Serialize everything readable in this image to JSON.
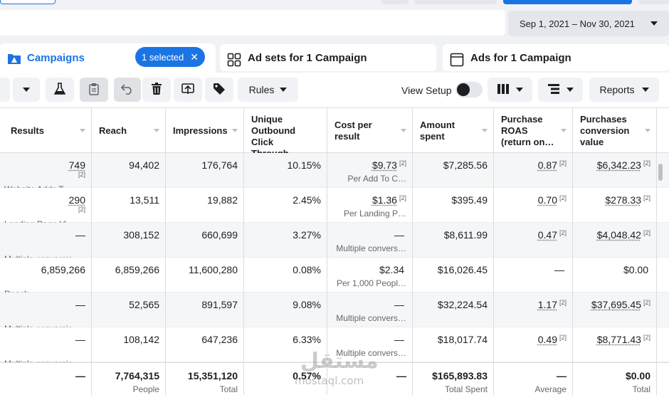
{
  "date_range": "Sep 1, 2021 – Nov 30, 2021",
  "tabs": {
    "campaigns": {
      "label": "Campaigns",
      "selected_pill": "1 selected"
    },
    "adsets": {
      "label": "Ad sets for 1 Campaign"
    },
    "ads": {
      "label": "Ads for 1 Campaign"
    }
  },
  "toolbar": {
    "rules_label": "Rules",
    "view_setup_label": "View Setup",
    "reports_label": "Reports"
  },
  "columns": {
    "results": "Results",
    "reach": "Reach",
    "impressions": "Impressions",
    "unique_outbound": [
      "Unique",
      "Outbound Click",
      "Through"
    ],
    "cost_per_result": [
      "Cost per",
      "result"
    ],
    "amount_spent": [
      "Amount",
      "spent"
    ],
    "purchase_roas": [
      "Purchase",
      "ROAS",
      "(return on…"
    ],
    "purchases_value": [
      "Purchases",
      "conversion",
      "value"
    ]
  },
  "rows": [
    {
      "results": "749",
      "results_fn": "[2]",
      "results_sub": "Website Adds T…",
      "reach": "94,402",
      "impressions": "176,764",
      "unique": "10.15%",
      "cpr": "$9.73",
      "cpr_fn": "[2]",
      "cpr_sub": "Per Add To C…",
      "spent": "$7,285.56",
      "roas": "0.87",
      "roas_fn": "[2]",
      "pcv": "$6,342.23",
      "pcv_fn": "[2]"
    },
    {
      "results": "290",
      "results_fn": "[2]",
      "results_sub": "Landing Page Vi…",
      "reach": "13,511",
      "impressions": "19,882",
      "unique": "2.45%",
      "cpr": "$1.36",
      "cpr_fn": "[2]",
      "cpr_sub": "Per Landing P…",
      "spent": "$395.49",
      "roas": "0.70",
      "roas_fn": "[2]",
      "pcv": "$278.33",
      "pcv_fn": "[2]"
    },
    {
      "results": "—",
      "results_fn": "",
      "results_sub": "Multiple conversio…",
      "reach": "308,152",
      "impressions": "660,699",
      "unique": "3.27%",
      "cpr": "—",
      "cpr_fn": "",
      "cpr_sub": "Multiple convers…",
      "spent": "$8,611.99",
      "roas": "0.47",
      "roas_fn": "[2]",
      "pcv": "$4,048.42",
      "pcv_fn": "[2]"
    },
    {
      "results": "6,859,266",
      "results_fn": "",
      "results_sub": "Reach",
      "reach": "6,859,266",
      "impressions": "11,600,280",
      "unique": "0.08%",
      "cpr": "$2.34",
      "cpr_fn": "",
      "cpr_sub": "Per 1,000 Peopl…",
      "spent": "$16,026.45",
      "roas": "—",
      "roas_fn": "",
      "pcv": "$0.00",
      "pcv_fn": ""
    },
    {
      "results": "—",
      "results_fn": "",
      "results_sub": "Multiple conversio…",
      "reach": "52,565",
      "impressions": "891,597",
      "unique": "9.08%",
      "cpr": "—",
      "cpr_fn": "",
      "cpr_sub": "Multiple convers…",
      "spent": "$32,224.54",
      "roas": "1.17",
      "roas_fn": "[2]",
      "pcv": "$37,695.45",
      "pcv_fn": "[2]"
    },
    {
      "results": "—",
      "results_fn": "",
      "results_sub": "Multiple conversio…",
      "reach": "108,142",
      "impressions": "647,236",
      "unique": "6.33%",
      "cpr": "—",
      "cpr_fn": "",
      "cpr_sub": "Multiple convers…",
      "spent": "$18,017.74",
      "roas": "0.49",
      "roas_fn": "[2]",
      "pcv": "$8,771.43",
      "pcv_fn": "[2]"
    }
  ],
  "totals": {
    "results": "—",
    "reach": "7,764,315",
    "reach_sub": "People",
    "impressions": "15,351,120",
    "impressions_sub": "Total",
    "unique": "0.57%",
    "cpr": "—",
    "spent": "$165,893.83",
    "spent_sub": "Total Spent",
    "roas": "—",
    "roas_sub": "Average",
    "pcv": "$0.00",
    "pcv_sub": "Total"
  },
  "watermark": {
    "logo": "مستقل",
    "url": "mostaql.com"
  }
}
